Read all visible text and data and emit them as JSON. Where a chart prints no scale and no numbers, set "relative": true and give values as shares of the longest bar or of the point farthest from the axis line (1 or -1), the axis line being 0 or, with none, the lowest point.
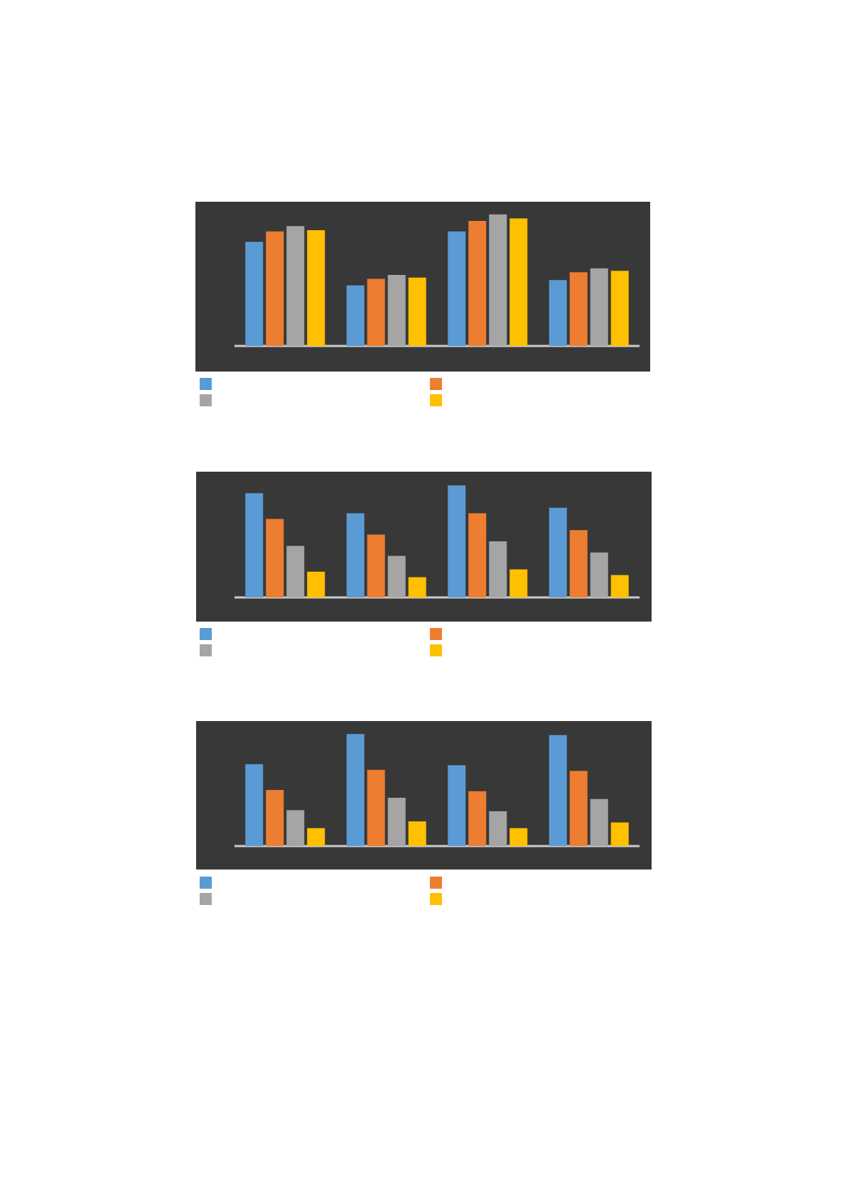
{
  "chart_data": [
    {
      "type": "bar",
      "relative": true,
      "categories": [
        null,
        null,
        null,
        null
      ],
      "series": [
        {
          "color": "#5b9bd5",
          "values": [
            0.79,
            0.46,
            0.87,
            0.5
          ]
        },
        {
          "color": "#ed7d31",
          "values": [
            0.87,
            0.51,
            0.95,
            0.56
          ]
        },
        {
          "color": "#a5a5a5",
          "values": [
            0.91,
            0.54,
            1,
            0.59
          ]
        },
        {
          "color": "#ffc000",
          "values": [
            0.88,
            0.52,
            0.97,
            0.57
          ]
        }
      ]
    },
    {
      "type": "bar",
      "relative": true,
      "categories": [
        null,
        null,
        null,
        null
      ],
      "series": [
        {
          "color": "#5b9bd5",
          "values": [
            0.93,
            0.75,
            1,
            0.8
          ]
        },
        {
          "color": "#ed7d31",
          "values": [
            0.7,
            0.56,
            0.75,
            0.6
          ]
        },
        {
          "color": "#a5a5a5",
          "values": [
            0.46,
            0.37,
            0.5,
            0.4
          ]
        },
        {
          "color": "#ffc000",
          "values": [
            0.23,
            0.18,
            0.25,
            0.2
          ]
        }
      ]
    },
    {
      "type": "bar",
      "relative": true,
      "categories": [
        null,
        null,
        null,
        null
      ],
      "series": [
        {
          "color": "#5b9bd5",
          "values": [
            0.73,
            1,
            0.72,
            0.99
          ]
        },
        {
          "color": "#ed7d31",
          "values": [
            0.5,
            0.68,
            0.49,
            0.67
          ]
        },
        {
          "color": "#a5a5a5",
          "values": [
            0.32,
            0.43,
            0.31,
            0.42
          ]
        },
        {
          "color": "#ffc000",
          "values": [
            0.16,
            0.22,
            0.16,
            0.21
          ]
        }
      ]
    }
  ]
}
